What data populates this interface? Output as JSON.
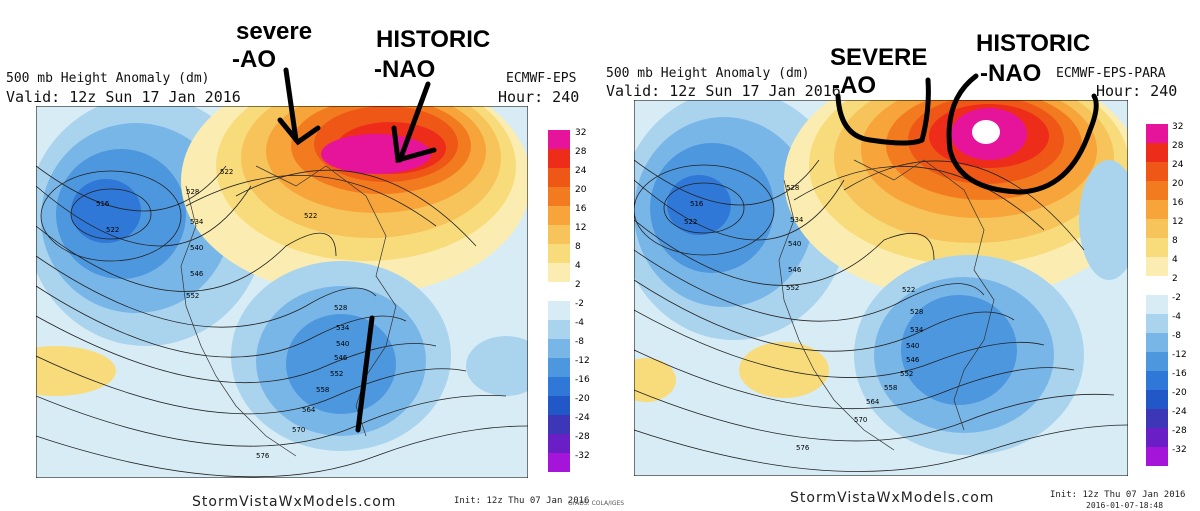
{
  "site": "StormVistaWxModels.com",
  "left": {
    "title": "500 mb Height Anomaly (dm)",
    "valid": "Valid: 12z Sun 17 Jan 2016",
    "model": "ECMWF-EPS",
    "hour": "Hour: 240",
    "init": "Init: 12z Thu 07 Jan 2016",
    "credit": "GrADS: COLA/IGES",
    "annotations": [
      "severe",
      "-AO",
      "HISTORIC",
      "-NAO"
    ],
    "height_labels": [
      "516",
      "522",
      "522",
      "528",
      "534",
      "540",
      "546",
      "552",
      "522",
      "528",
      "534",
      "540",
      "546",
      "552",
      "558",
      "564",
      "570",
      "576"
    ]
  },
  "right": {
    "title": "500 mb Height Anomaly (dm)",
    "valid": "Valid: 12z Sun 17 Jan 2016",
    "model": "ECMWF-EPS-PARA",
    "hour": "Hour: 240",
    "init": "Init: 12z Thu 07 Jan 2016",
    "timestamp": "2016-01-07-18:48",
    "annotations": [
      "SEVERE",
      "-AO",
      "HISTORIC",
      "-NAO"
    ],
    "height_labels": [
      "516",
      "522",
      "528",
      "534",
      "540",
      "546",
      "552",
      "522",
      "528",
      "534",
      "540",
      "546",
      "552",
      "558",
      "564",
      "570",
      "576"
    ]
  },
  "colorbar": {
    "labels": [
      "32",
      "28",
      "24",
      "20",
      "16",
      "12",
      "8",
      "4",
      "2",
      "-2",
      "-4",
      "-8",
      "-12",
      "-16",
      "-20",
      "-24",
      "-28",
      "-32"
    ],
    "colors": [
      "#e6149b",
      "#ed2d1a",
      "#ee5716",
      "#f27b1f",
      "#f7a43a",
      "#f6c45a",
      "#f8dc7c",
      "#fbedb1",
      "#ffffff",
      "#d8ecf6",
      "#aad4ee",
      "#79b6e8",
      "#4d97df",
      "#2f78d7",
      "#2157c6",
      "#3d36b6",
      "#6a1ec5",
      "#a514d9"
    ]
  }
}
